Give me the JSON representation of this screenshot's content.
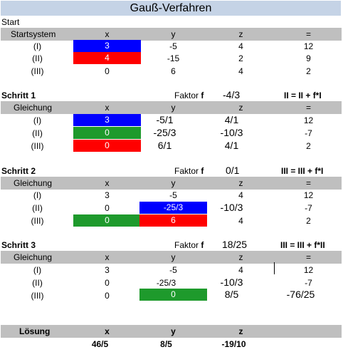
{
  "title": "Gauß-Verfahren",
  "start": {
    "label": "Start",
    "header": [
      "Startsystem",
      "x",
      "y",
      "z",
      "="
    ],
    "rows": [
      [
        "(I)",
        "3",
        "-5",
        "4",
        "12"
      ],
      [
        "(II)",
        "4",
        "-15",
        "2",
        "9"
      ],
      [
        "(III)",
        "0",
        "6",
        "4",
        "2"
      ]
    ]
  },
  "steps": [
    {
      "label": "Schritt 1",
      "factor_label": "Faktor",
      "factor_var": "f",
      "factor": "-4/3",
      "rule": "II = II + f*I",
      "header": [
        "Gleichung",
        "x",
        "y",
        "z",
        "="
      ],
      "rows": [
        [
          "(I)",
          "3",
          "-5/1",
          "4/1",
          "12"
        ],
        [
          "(II)",
          "0",
          "-25/3",
          "-10/3",
          "-7"
        ],
        [
          "(III)",
          "0",
          "6/1",
          "4/1",
          "2"
        ]
      ]
    },
    {
      "label": "Schritt 2",
      "factor_label": "Faktor",
      "factor_var": "f",
      "factor": "0/1",
      "rule": "III = III + f*I",
      "header": [
        "Gleichung",
        "x",
        "y",
        "z",
        "="
      ],
      "rows": [
        [
          "(I)",
          "3",
          "-5",
          "4",
          "12"
        ],
        [
          "(II)",
          "0",
          "-25/3",
          "-10/3",
          "-7"
        ],
        [
          "(III)",
          "0",
          "6",
          "4",
          "2"
        ]
      ]
    },
    {
      "label": "Schritt 3",
      "factor_label": "Faktor",
      "factor_var": "f",
      "factor": "18/25",
      "rule": "III = III + f*II",
      "header": [
        "Gleichung",
        "x",
        "y",
        "z",
        "="
      ],
      "rows": [
        [
          "(I)",
          "3",
          "-5",
          "4",
          "12"
        ],
        [
          "(II)",
          "0",
          "-25/3",
          "-10/3",
          "-7"
        ],
        [
          "(III)",
          "0",
          "0",
          "8/5",
          "-76/25"
        ]
      ]
    }
  ],
  "solution": {
    "header": [
      "Lösung",
      "x",
      "y",
      "z"
    ],
    "values": [
      "46/5",
      "8/5",
      "-19/10"
    ]
  },
  "colors": {
    "title_bg": "#c5d3e6",
    "header_bg": "#bfbfbf",
    "blue": "#0000ff",
    "red": "#ff0000",
    "green": "#1e9a2c"
  }
}
